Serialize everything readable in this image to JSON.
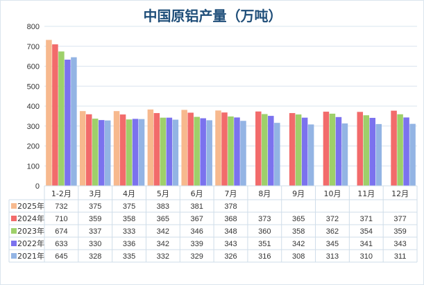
{
  "chart_data": {
    "type": "bar",
    "title": "中国原铝产量（万吨）",
    "xlabel": "",
    "ylabel": "",
    "ylim": [
      0,
      800
    ],
    "yticks": [
      0,
      100,
      200,
      300,
      400,
      500,
      600,
      700,
      800
    ],
    "grid": true,
    "legend": "data-table-left",
    "categories": [
      "1-2月",
      "3月",
      "4月",
      "5月",
      "6月",
      "7月",
      "8月",
      "9月",
      "10月",
      "11月",
      "12月"
    ],
    "series": [
      {
        "name": "2025年",
        "color": "#f7b98e",
        "values": [
          732,
          375,
          375,
          383,
          381,
          378,
          null,
          null,
          null,
          null,
          null
        ]
      },
      {
        "name": "2024年",
        "color": "#f26b6b",
        "values": [
          710,
          359,
          358,
          365,
          367,
          368,
          373,
          365,
          372,
          371,
          377
        ]
      },
      {
        "name": "2023年",
        "color": "#9ed06a",
        "values": [
          674,
          337,
          333,
          342,
          346,
          348,
          360,
          358,
          362,
          354,
          359
        ]
      },
      {
        "name": "2022年",
        "color": "#7b72ee",
        "values": [
          633,
          330,
          336,
          342,
          339,
          343,
          351,
          342,
          345,
          341,
          343
        ]
      },
      {
        "name": "2021年",
        "color": "#93b4e4",
        "values": [
          645,
          328,
          335,
          332,
          329,
          326,
          316,
          308,
          313,
          310,
          311
        ]
      }
    ]
  }
}
